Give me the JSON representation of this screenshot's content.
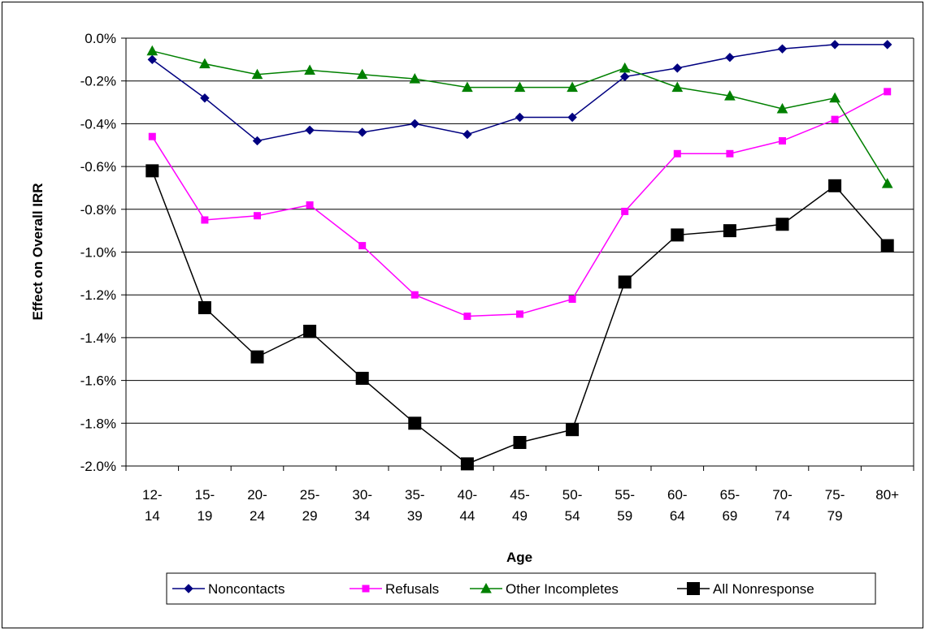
{
  "chart_data": {
    "type": "line",
    "xlabel": "Age",
    "ylabel": "Effect on Overall IRR",
    "categories": [
      [
        "12-",
        "14"
      ],
      [
        "15-",
        "19"
      ],
      [
        "20-",
        "24"
      ],
      [
        "25-",
        "29"
      ],
      [
        "30-",
        "34"
      ],
      [
        "35-",
        "39"
      ],
      [
        "40-",
        "44"
      ],
      [
        "45-",
        "49"
      ],
      [
        "50-",
        "54"
      ],
      [
        "55-",
        "59"
      ],
      [
        "60-",
        "64"
      ],
      [
        "65-",
        "69"
      ],
      [
        "70-",
        "74"
      ],
      [
        "75-",
        "79"
      ],
      [
        "80+",
        ""
      ]
    ],
    "ylim": [
      -2.0,
      0.0
    ],
    "yticks": [
      "0.0%",
      "-0.2%",
      "-0.4%",
      "-0.6%",
      "-0.8%",
      "-1.0%",
      "-1.2%",
      "-1.4%",
      "-1.6%",
      "-1.8%",
      "-2.0%"
    ],
    "ytick_values": [
      0.0,
      -0.2,
      -0.4,
      -0.6,
      -0.8,
      -1.0,
      -1.2,
      -1.4,
      -1.6,
      -1.8,
      -2.0
    ],
    "grid": true,
    "legend_position": "bottom",
    "series": [
      {
        "name": "Noncontacts",
        "color": "#000080",
        "marker": "diamond",
        "values": [
          -0.1,
          -0.28,
          -0.48,
          -0.43,
          -0.44,
          -0.4,
          -0.45,
          -0.37,
          -0.37,
          -0.18,
          -0.14,
          -0.09,
          -0.05,
          -0.03,
          -0.03
        ]
      },
      {
        "name": "Refusals",
        "color": "#ff00ff",
        "marker": "square-small",
        "values": [
          -0.46,
          -0.85,
          -0.83,
          -0.78,
          -0.97,
          -1.2,
          -1.3,
          -1.29,
          -1.22,
          -0.81,
          -0.54,
          -0.54,
          -0.48,
          -0.38,
          -0.25
        ]
      },
      {
        "name": "Other Incompletes",
        "color": "#008000",
        "marker": "triangle",
        "values": [
          -0.06,
          -0.12,
          -0.17,
          -0.15,
          -0.17,
          -0.19,
          -0.23,
          -0.23,
          -0.23,
          -0.14,
          -0.23,
          -0.27,
          -0.33,
          -0.28,
          -0.68
        ]
      },
      {
        "name": "All Nonresponse",
        "color": "#000000",
        "marker": "square-large",
        "values": [
          -0.62,
          -1.26,
          -1.49,
          -1.37,
          -1.59,
          -1.8,
          -1.99,
          -1.89,
          -1.83,
          -1.14,
          -0.92,
          -0.9,
          -0.87,
          -0.69,
          -0.97
        ]
      }
    ]
  }
}
